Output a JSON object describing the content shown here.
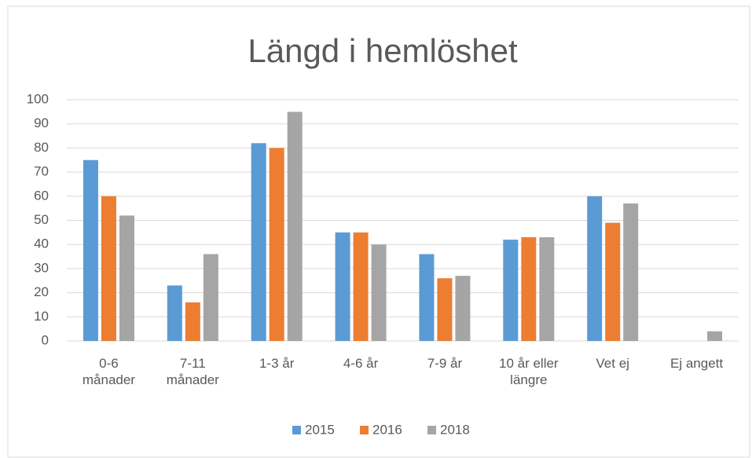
{
  "chart_data": {
    "type": "bar",
    "title": "Längd i hemlöshet",
    "categories": [
      "0-6\nmånader",
      "7-11\nmånader",
      "1-3 år",
      "4-6 år",
      "7-9 år",
      "10 år eller\nlängre",
      "Vet ej",
      "Ej angett"
    ],
    "series": [
      {
        "name": "2015",
        "color": "#5b9bd5",
        "values": [
          75,
          23,
          82,
          45,
          36,
          42,
          60,
          0
        ]
      },
      {
        "name": "2016",
        "color": "#ed7d31",
        "values": [
          60,
          16,
          80,
          45,
          26,
          43,
          49,
          0
        ]
      },
      {
        "name": "2018",
        "color": "#a5a5a5",
        "values": [
          52,
          36,
          95,
          40,
          27,
          43,
          57,
          4
        ]
      }
    ],
    "ylim": [
      0,
      100
    ],
    "yticks": [
      0,
      10,
      20,
      30,
      40,
      50,
      60,
      70,
      80,
      90,
      100
    ],
    "grid": true,
    "legend": "bottom"
  }
}
